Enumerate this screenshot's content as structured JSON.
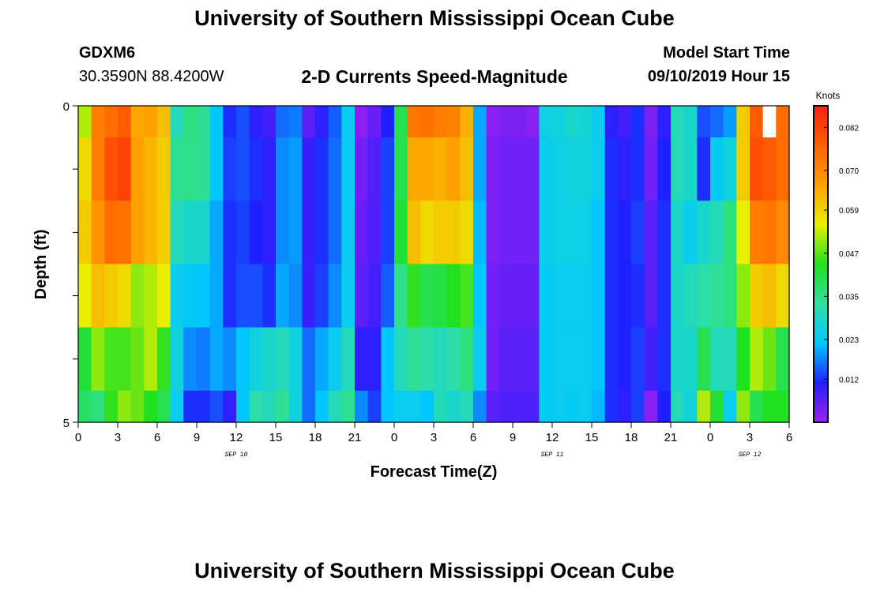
{
  "page": {
    "title": "University of Southern Mississippi Ocean Cube",
    "footer_title": "University of Southern Mississippi Ocean Cube",
    "station_id": "GDXM6",
    "station_coords": "30.3590N 88.4200W",
    "model_start_label": "Model Start Time",
    "model_start_value": "09/10/2019 Hour 15"
  },
  "chart_data": {
    "type": "heatmap",
    "title": "2-D Currents Speed-Magnitude",
    "xlabel": "Forecast Time(Z)",
    "ylabel": "Depth (ft)",
    "colorbar_label": "Knots",
    "colormap": [
      "#a020f0",
      "#2020ff",
      "#00c8ff",
      "#30e0a0",
      "#20e020",
      "#e8f000",
      "#ffa000",
      "#ff6000",
      "#ff2010"
    ],
    "missing_color": "#ffffff",
    "vmin": 0.0,
    "vmax": 0.088,
    "colorbar_ticks": [
      "0.012",
      "0.023",
      "0.035",
      "0.047",
      "0.059",
      "0.070",
      "0.082"
    ],
    "colorbar_tick_values": [
      0.012,
      0.023,
      0.035,
      0.047,
      0.059,
      0.07,
      0.082
    ],
    "yaxis": {
      "min": 0,
      "max": 5,
      "labeled_ticks": [
        "0",
        "5"
      ],
      "labeled_tick_values": [
        0,
        5
      ],
      "minor_tick_values": [
        1,
        2,
        3,
        4
      ]
    },
    "xaxis": {
      "min": 0,
      "max": 54,
      "tick_labels": [
        "0",
        "3",
        "6",
        "9",
        "12",
        "15",
        "18",
        "21",
        "0",
        "3",
        "6",
        "9",
        "12",
        "15",
        "18",
        "21",
        "0",
        "3",
        "6"
      ],
      "tick_values": [
        0,
        3,
        6,
        9,
        12,
        15,
        18,
        21,
        24,
        27,
        30,
        33,
        36,
        39,
        42,
        45,
        48,
        51,
        54
      ]
    },
    "date_labels": [
      {
        "text": "SEP 10",
        "x": 12
      },
      {
        "text": "SEP 11",
        "x": 36
      },
      {
        "text": "SEP 12",
        "x": 51
      }
    ],
    "depth_rows": [
      "0-0.5 ft",
      "0.5-1.5 ft",
      "1.5-2.5 ft",
      "2.5-3.5 ft",
      "3.5-4.5 ft",
      "4.5-5 ft"
    ],
    "depth_row_bounds": [
      0,
      0.5,
      1.5,
      2.5,
      3.5,
      4.5,
      5
    ],
    "time_steps": 54,
    "values": [
      [
        0.052,
        0.072,
        0.075,
        0.078,
        0.065,
        0.066,
        0.062,
        0.03,
        0.036,
        0.034,
        0.022,
        0.012,
        0.014,
        0.01,
        0.008,
        0.016,
        0.017,
        0.006,
        0.01,
        0.015,
        0.024,
        0.002,
        0.005,
        0.011,
        0.04,
        0.073,
        0.074,
        0.072,
        0.071,
        0.064,
        0.02,
        0.002,
        0.003,
        0.003,
        0.002,
        0.025,
        0.026,
        0.028,
        0.027,
        0.024,
        0.01,
        0.008,
        0.012,
        0.003,
        0.01,
        0.03,
        0.028,
        0.014,
        0.016,
        0.019,
        0.06,
        0.078,
        null,
        0.075
      ],
      [
        0.058,
        0.072,
        0.08,
        0.082,
        0.066,
        0.063,
        0.06,
        0.034,
        0.035,
        0.034,
        0.022,
        0.013,
        0.014,
        0.012,
        0.01,
        0.018,
        0.019,
        0.009,
        0.012,
        0.016,
        0.024,
        0.004,
        0.007,
        0.013,
        0.04,
        0.065,
        0.065,
        0.064,
        0.066,
        0.062,
        0.02,
        0.003,
        0.004,
        0.004,
        0.004,
        0.024,
        0.025,
        0.026,
        0.026,
        0.024,
        0.012,
        0.01,
        0.012,
        0.004,
        0.011,
        0.03,
        0.028,
        0.012,
        0.023,
        0.026,
        0.06,
        0.08,
        0.078,
        0.075
      ],
      [
        0.06,
        0.068,
        0.075,
        0.074,
        0.066,
        0.063,
        0.06,
        0.03,
        0.028,
        0.028,
        0.02,
        0.012,
        0.013,
        0.011,
        0.01,
        0.018,
        0.019,
        0.009,
        0.012,
        0.016,
        0.024,
        0.005,
        0.007,
        0.013,
        0.042,
        0.062,
        0.058,
        0.06,
        0.06,
        0.058,
        0.021,
        0.003,
        0.004,
        0.004,
        0.004,
        0.024,
        0.025,
        0.025,
        0.025,
        0.022,
        0.012,
        0.011,
        0.013,
        0.006,
        0.012,
        0.028,
        0.024,
        0.028,
        0.03,
        0.036,
        0.055,
        0.072,
        0.073,
        0.07
      ],
      [
        0.055,
        0.062,
        0.06,
        0.058,
        0.05,
        0.052,
        0.055,
        0.024,
        0.023,
        0.022,
        0.02,
        0.012,
        0.014,
        0.014,
        0.012,
        0.02,
        0.018,
        0.009,
        0.013,
        0.018,
        0.024,
        0.006,
        0.008,
        0.015,
        0.035,
        0.045,
        0.04,
        0.041,
        0.044,
        0.046,
        0.022,
        0.004,
        0.005,
        0.005,
        0.005,
        0.023,
        0.024,
        0.024,
        0.024,
        0.022,
        0.012,
        0.011,
        0.012,
        0.006,
        0.012,
        0.028,
        0.03,
        0.032,
        0.034,
        0.036,
        0.05,
        0.06,
        0.062,
        0.058
      ],
      [
        0.042,
        0.05,
        0.046,
        0.046,
        0.048,
        0.052,
        0.045,
        0.026,
        0.018,
        0.017,
        0.02,
        0.018,
        0.022,
        0.026,
        0.028,
        0.03,
        0.026,
        0.016,
        0.02,
        0.024,
        0.03,
        0.01,
        0.01,
        0.022,
        0.03,
        0.034,
        0.032,
        0.03,
        0.032,
        0.036,
        0.024,
        0.004,
        0.006,
        0.006,
        0.006,
        0.023,
        0.024,
        0.024,
        0.024,
        0.022,
        0.012,
        0.011,
        0.013,
        0.008,
        0.012,
        0.028,
        0.028,
        0.04,
        0.03,
        0.03,
        0.044,
        0.052,
        0.048,
        0.04
      ],
      [
        0.038,
        0.036,
        0.045,
        0.05,
        0.048,
        0.044,
        0.04,
        0.024,
        0.012,
        0.012,
        0.014,
        0.01,
        0.022,
        0.032,
        0.03,
        0.034,
        0.026,
        0.016,
        0.022,
        0.03,
        0.034,
        0.018,
        0.013,
        0.022,
        0.024,
        0.024,
        0.022,
        0.03,
        0.028,
        0.03,
        0.018,
        0.006,
        0.007,
        0.007,
        0.007,
        0.023,
        0.024,
        0.023,
        0.024,
        0.021,
        0.012,
        0.01,
        0.013,
        0.002,
        0.011,
        0.03,
        0.026,
        0.052,
        0.042,
        0.024,
        0.05,
        0.04,
        0.044,
        0.044
      ]
    ]
  }
}
